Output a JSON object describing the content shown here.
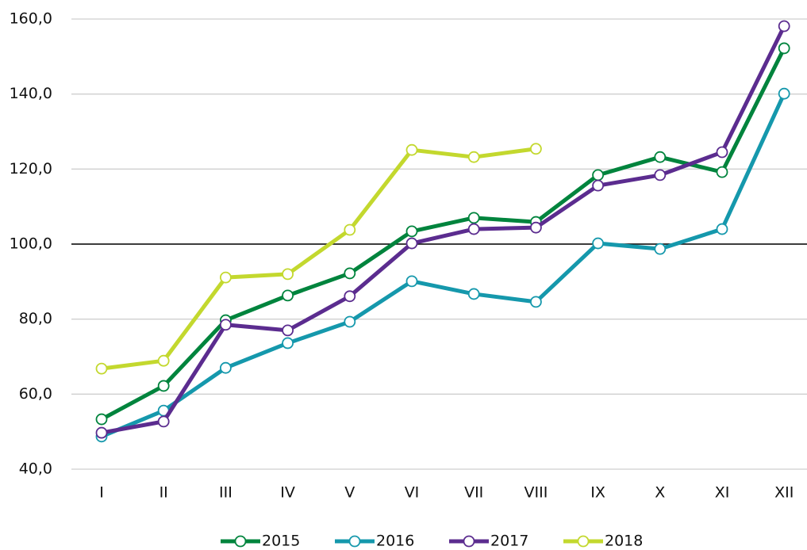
{
  "chart_data": {
    "type": "line",
    "categories": [
      "I",
      "II",
      "III",
      "IV",
      "V",
      "VI",
      "VII",
      "VIII",
      "IX",
      "X",
      "XI",
      "XII"
    ],
    "series": [
      {
        "name": "2015",
        "color": "#00843d",
        "values": [
          53.3,
          62.2,
          79.7,
          86.3,
          92.2,
          103.4,
          107.0,
          105.9,
          118.4,
          123.2,
          119.2,
          152.2
        ]
      },
      {
        "name": "2016",
        "color": "#1598ac",
        "values": [
          48.7,
          55.6,
          67.0,
          73.6,
          79.3,
          90.1,
          86.7,
          84.6,
          100.2,
          98.7,
          104.0,
          140.1
        ]
      },
      {
        "name": "2017",
        "color": "#5b2c8f",
        "values": [
          49.7,
          52.7,
          78.5,
          77.0,
          86.1,
          100.2,
          104.0,
          104.4,
          115.6,
          118.4,
          124.5,
          158.1
        ]
      },
      {
        "name": "2018",
        "color": "#c3d82e",
        "values": [
          66.8,
          68.9,
          91.1,
          92.0,
          103.8,
          125.1,
          123.2,
          125.4,
          null,
          null,
          null,
          null
        ]
      }
    ],
    "ylim": [
      40,
      160
    ],
    "yticks": [
      {
        "value": 40,
        "label": "40,0"
      },
      {
        "value": 60,
        "label": "60,0"
      },
      {
        "value": 80,
        "label": "80,0"
      },
      {
        "value": 100,
        "label": "100,0"
      },
      {
        "value": 120,
        "label": "120,0"
      },
      {
        "value": 140,
        "label": "140,0"
      },
      {
        "value": 160,
        "label": "160,0"
      }
    ],
    "reference_line": 100,
    "grid": true,
    "legend": "bottom"
  }
}
